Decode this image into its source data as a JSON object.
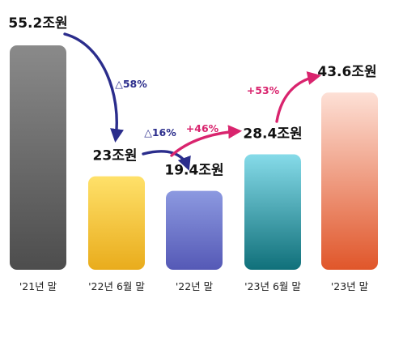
{
  "chart_data": {
    "type": "bar",
    "categories": [
      "'21년 말",
      "'22년 6월 말",
      "'22년 말",
      "'23년 6월 말",
      "'23년 말"
    ],
    "values": [
      55.2,
      23,
      19.4,
      28.4,
      43.6
    ],
    "value_labels": [
      "55.2조원",
      "23조원",
      "19.4조원",
      "28.4조원",
      "43.6조원"
    ],
    "changes": [
      {
        "from": 0,
        "to": 1,
        "label": "△58%",
        "direction": "down",
        "color": "#2b2d8c"
      },
      {
        "from": 1,
        "to": 2,
        "label": "△16%",
        "direction": "down",
        "color": "#2b2d8c"
      },
      {
        "from": 2,
        "to": 3,
        "label": "+46%",
        "direction": "up",
        "color": "#d9246e"
      },
      {
        "from": 3,
        "to": 4,
        "label": "+53%",
        "direction": "up",
        "color": "#d9246e"
      }
    ],
    "bar_colors": [
      [
        "#8a8a8a",
        "#4d4d4d"
      ],
      [
        "#ffe16a",
        "#e9ac1c"
      ],
      [
        "#8c99e0",
        "#5559b6"
      ],
      [
        "#86dbe9",
        "#10707a"
      ],
      [
        "#fde0d6",
        "#e0562a"
      ]
    ],
    "ylim": [
      0,
      60
    ],
    "grid": false,
    "legend": "none",
    "xlabel": "",
    "ylabel": ""
  }
}
